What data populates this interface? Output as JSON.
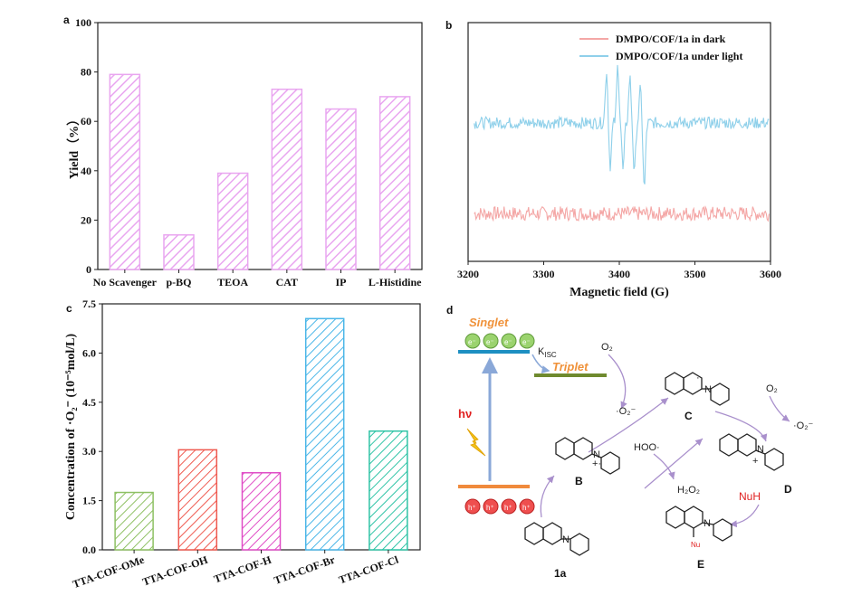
{
  "panels": {
    "a": "a",
    "b": "b",
    "c": "c",
    "d": "d"
  },
  "colors": {
    "violet": "#e9a6f0",
    "pink": "#f4a7a6",
    "cyan": "#8fd0ea",
    "green": "#8ec063",
    "red": "#ef5a50",
    "magenta": "#e04cc6",
    "blue": "#4ab6e8",
    "teal": "#2fc4a6",
    "arrow": "#a990cc"
  },
  "chart_data": [
    {
      "panel": "a",
      "type": "bar",
      "ylabel": "Yield（%）",
      "categories": [
        "No Scavenger",
        "p-BQ",
        "TEOA",
        "CAT",
        "IP",
        "L-Histidine"
      ],
      "values": [
        79,
        14,
        39,
        73,
        65,
        70
      ],
      "ylim": [
        0,
        100
      ],
      "yticks": [
        "0",
        "20",
        "40",
        "60",
        "80",
        "100"
      ]
    },
    {
      "panel": "b",
      "type": "line",
      "xlabel": "Magnetic field (G)",
      "xlim": [
        3200,
        3600
      ],
      "xticks": [
        "3200",
        "3300",
        "3400",
        "3500",
        "3600"
      ],
      "series": [
        {
          "name": "DMPO/COF/1a in dark",
          "baseline": 0.2,
          "noise": 0.06,
          "peaks": []
        },
        {
          "name": "DMPO/COF/1a under light",
          "baseline": 0.58,
          "noise": 0.05,
          "peaks": [
            [
              3383,
              0.22
            ],
            [
              3388,
              -0.18
            ],
            [
              3398,
              0.24
            ],
            [
              3405,
              -0.2
            ],
            [
              3414,
              0.19
            ],
            [
              3420,
              -0.21
            ],
            [
              3428,
              0.14
            ],
            [
              3433,
              -0.28
            ]
          ]
        }
      ]
    },
    {
      "panel": "c",
      "type": "bar",
      "ylabel": "Concentration of ·O₂⁻ (10⁻⁵mol/L)",
      "categories": [
        "TTA-COF-OMe",
        "TTA-COF-OH",
        "TTA-COF-H",
        "TTA-COF-Br",
        "TTA-COF-Cl"
      ],
      "values": [
        1.75,
        3.05,
        2.35,
        7.05,
        3.62
      ],
      "ylim": [
        0,
        7.5
      ],
      "yticks": [
        "0.0",
        "1.5",
        "3.0",
        "4.5",
        "6.0",
        "7.5"
      ]
    }
  ],
  "scheme": {
    "singlet": "Singlet",
    "triplet": "Triplet",
    "kisc_main": "K",
    "kisc_sub": "ISC",
    "hv": "hν",
    "electron": "e⁻",
    "hole": "h⁺",
    "o2": "O₂",
    "o2_radical": "·O₂⁻",
    "hoo": "HOO·",
    "h2o2": "H₂O₂",
    "nuh": "NuH",
    "nu": "Nu",
    "n_label": "N",
    "cation_mark": "+",
    "cation_radical_mark": "+·",
    "radical_dot": "·",
    "labels": [
      "B",
      "C",
      "D",
      "1a",
      "E"
    ]
  }
}
